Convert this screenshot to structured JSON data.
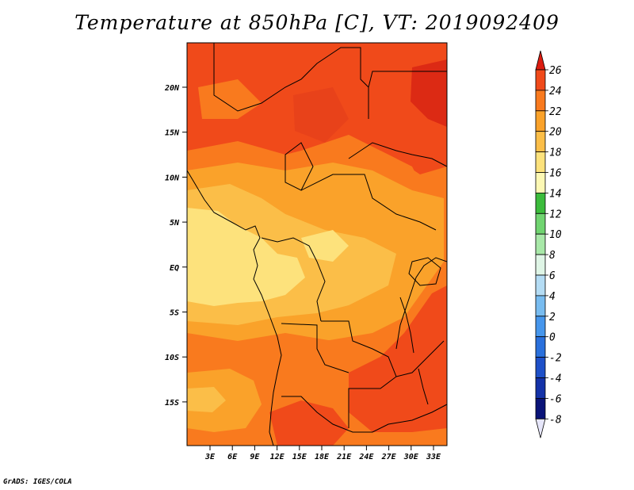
{
  "title": "Temperature at 850hPa [C], VT: 2019092409",
  "credit": "GrADS: IGES/COLA",
  "map": {
    "lon_labels": [
      "3E",
      "6E",
      "9E",
      "12E",
      "15E",
      "18E",
      "21E",
      "24E",
      "27E",
      "30E",
      "33E"
    ],
    "lat_labels": [
      "20N",
      "15N",
      "10N",
      "5N",
      "EQ",
      "5S",
      "10S",
      "15S"
    ],
    "field_colors": {
      "t26": "#dc2a14",
      "t24": "#f04a1a",
      "t22": "#f97a1e",
      "t20": "#faa22a",
      "t18": "#fbbe48",
      "t16": "#fde27c"
    }
  },
  "colorbar": {
    "labels": [
      "26",
      "24",
      "22",
      "20",
      "18",
      "16",
      "14",
      "12",
      "10",
      "8",
      "6",
      "4",
      "2",
      "0",
      "-2",
      "-4",
      "-6",
      "-8"
    ],
    "colors": [
      "#dc1c10",
      "#f04a1a",
      "#f97a1e",
      "#faa22a",
      "#fbbe48",
      "#fde27c",
      "#fdf8b4",
      "#3cbc3c",
      "#70d470",
      "#a8e8a8",
      "#dff5e6",
      "#b4dcf4",
      "#78bcf0",
      "#4696ec",
      "#2a70dc",
      "#1e50c8",
      "#1432a8",
      "#0a1478",
      "#e6e6fa"
    ]
  }
}
